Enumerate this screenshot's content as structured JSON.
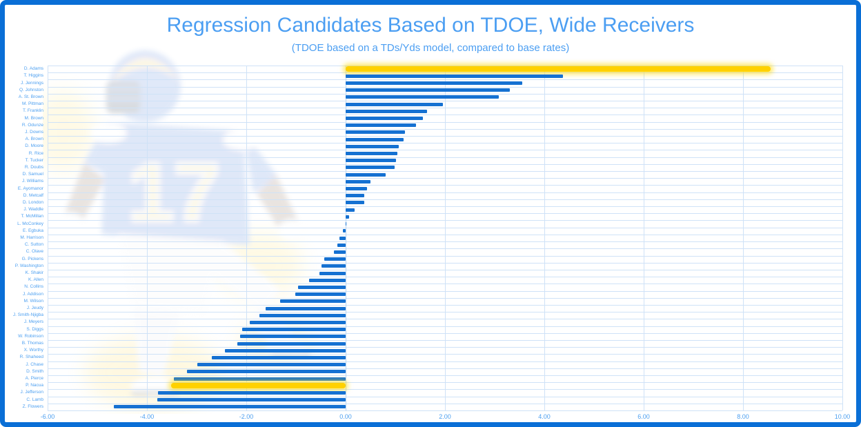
{
  "title": "Regression Candidates Based on TDOE, Wide Receivers",
  "subtitle": "(TDOE based on a TDs/Yds model, compared to base rates)",
  "colors": {
    "frame_border": "#0a6fd6",
    "title_text": "#4b9ef2",
    "axis_text": "#4c9ff0",
    "bar": "#1571d2",
    "highlight": "#ffd100",
    "gridline": "#cfe2f7",
    "background": "#ffffff"
  },
  "watermark": {
    "description": "faded photo of a Rams wide receiver in blue jersey number 17 running",
    "jersey_number": "17"
  },
  "chart_data": {
    "type": "bar",
    "orientation": "horizontal",
    "title": "Regression Candidates Based on TDOE, Wide Receivers",
    "subtitle": "(TDOE based on a TDs/Yds model, compared to base rates)",
    "xlabel": "",
    "ylabel": "",
    "xlim": [
      -6,
      10
    ],
    "grid": true,
    "x_ticks": [
      -6,
      -4,
      -2,
      0,
      2,
      4,
      6,
      8,
      10
    ],
    "x_tick_labels": [
      "-6.00",
      "-4.00",
      "-2.00",
      "0.00",
      "2.00",
      "4.00",
      "6.00",
      "8.00",
      "10.00"
    ],
    "categories": [
      "D. Adams",
      "T. Higgins",
      "J. Jennings",
      "Q. Johnston",
      "A. St. Brown",
      "M. Pittman",
      "T. Franklin",
      "M. Brown",
      "R. Odunze",
      "J. Downs",
      "A. Brown",
      "D. Moore",
      "R. Rice",
      "T. Tucker",
      "R. Doubs",
      "D. Samuel",
      "J. Williams",
      "E. Ayomanor",
      "D. Metcalf",
      "D. London",
      "J. Waddle",
      "T. McMillan",
      "L. McConkey",
      "E. Egbuka",
      "M. Harrison",
      "C. Sutton",
      "C. Olave",
      "G. Pickens",
      "P. Washington",
      "K. Shakir",
      "K. Allen",
      "N. Collins",
      "J. Addison",
      "M. Wilson",
      "J. Jeudy",
      "J. Smith-Njigba",
      "J. Meyers",
      "S. Diggs",
      "W. Robinson",
      "B. Thomas",
      "X. Worthy",
      "R. Shaheed",
      "J. Chase",
      "D. Smith",
      "A. Pierce",
      "P. Nacua",
      "J. Jefferson",
      "C. Lamb",
      "Z. Flowers"
    ],
    "values": [
      8.55,
      4.38,
      3.55,
      3.3,
      3.08,
      1.96,
      1.64,
      1.56,
      1.41,
      1.19,
      1.16,
      1.07,
      1.04,
      1.02,
      0.99,
      0.81,
      0.5,
      0.43,
      0.38,
      0.37,
      0.18,
      0.07,
      0.02,
      -0.05,
      -0.13,
      -0.17,
      -0.24,
      -0.43,
      -0.49,
      -0.53,
      -0.74,
      -0.96,
      -1.01,
      -1.32,
      -1.61,
      -1.73,
      -1.93,
      -2.08,
      -2.12,
      -2.18,
      -2.43,
      -2.69,
      -2.99,
      -3.19,
      -3.46,
      -3.51,
      -3.78,
      -3.79,
      -4.66
    ],
    "highlighted_categories": [
      "D. Adams",
      "P. Nacua"
    ],
    "highlight_color": "#ffd100",
    "bar_color": "#1571d2",
    "legend": null
  }
}
